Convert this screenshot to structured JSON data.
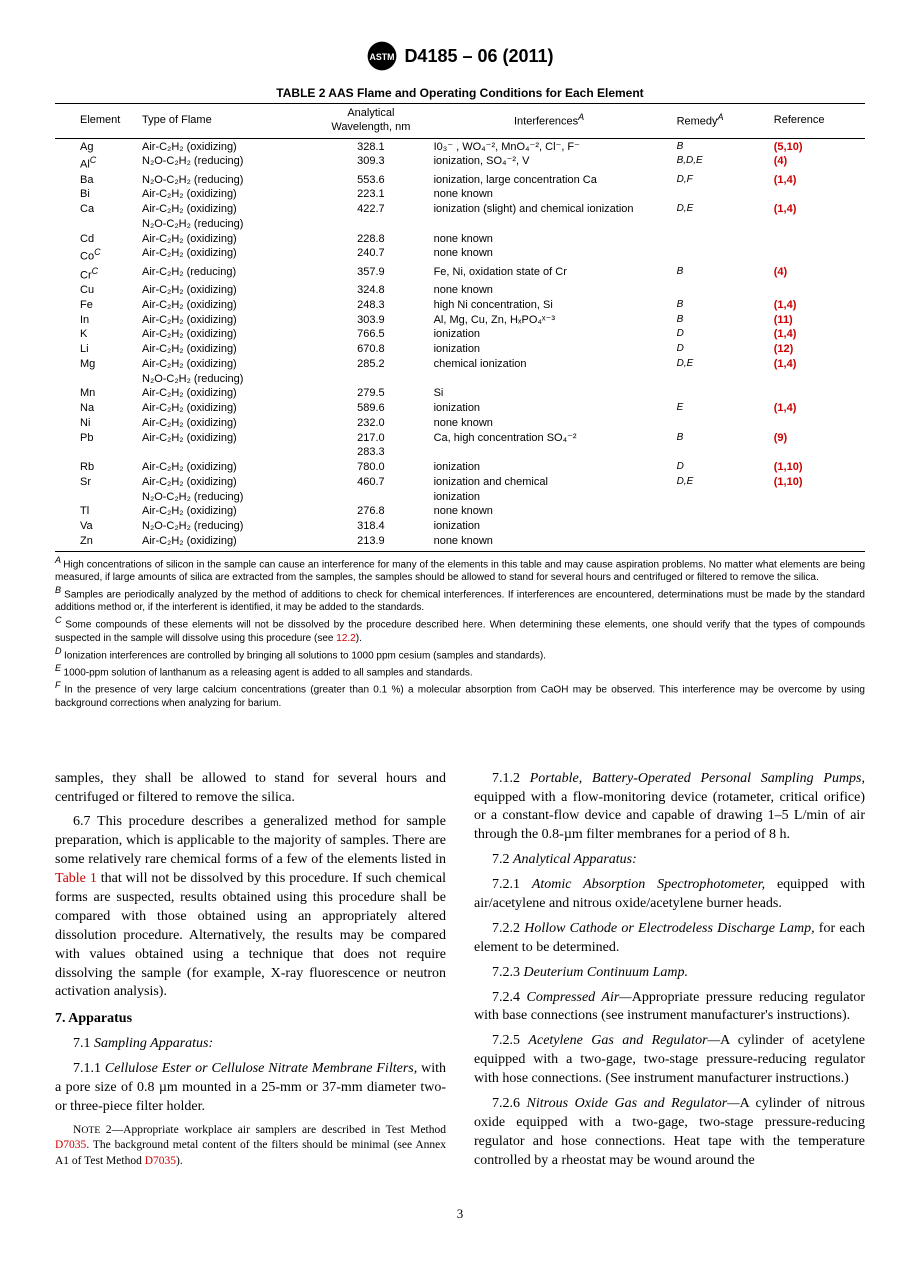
{
  "header": {
    "designation": "D4185 – 06 (2011)"
  },
  "table": {
    "title": "TABLE 2 AAS Flame and Operating Conditions for Each Element",
    "columns": [
      "Element",
      "Type of Flame",
      "Analytical\nWavelength, nm",
      "Interferences",
      "Remedy",
      "Reference"
    ],
    "col_sup": {
      "3": "A",
      "4": "A"
    },
    "rows": [
      {
        "el": "Ag",
        "flame": "Air-C₂H₂  (oxidizing)",
        "wave": "328.1",
        "intf": "I0₃⁻ , WO₄⁻², MnO₄⁻², Cl⁻, F⁻",
        "rem": "B",
        "ref": "(5,10)"
      },
      {
        "el": "Al",
        "elSup": "C",
        "flame": "N₂O-C₂H₂  (reducing)",
        "wave": "309.3",
        "intf": "ionization, SO₄⁻², V",
        "rem": "B,D,E",
        "ref": "(4)"
      },
      {
        "el": "Ba",
        "flame": "N₂O-C₂H₂  (reducing)",
        "wave": "553.6",
        "intf": "ionization, large concentration Ca",
        "rem": "D,F",
        "ref": "(1,4)"
      },
      {
        "el": "Bi",
        "flame": "Air-C₂H₂  (oxidizing)",
        "wave": "223.1",
        "intf": "none known",
        "rem": "",
        "ref": ""
      },
      {
        "el": "Ca",
        "flame": "Air-C₂H₂  (oxidizing)",
        "wave": "422.7",
        "intf": "ionization (slight) and chemical ionization",
        "rem": "D,E",
        "ref": "(1,4)"
      },
      {
        "el": "",
        "flame": "N₂O-C₂H₂  (reducing)",
        "wave": "",
        "intf": "",
        "rem": "",
        "ref": ""
      },
      {
        "el": "Cd",
        "flame": "Air-C₂H₂  (oxidizing)",
        "wave": "228.8",
        "intf": "none known",
        "rem": "",
        "ref": ""
      },
      {
        "el": "Co",
        "elSup": "C",
        "flame": "Air-C₂H₂  (oxidizing)",
        "wave": "240.7",
        "intf": "none known",
        "rem": "",
        "ref": ""
      },
      {
        "el": "Cr",
        "elSup": "C",
        "flame": "Air-C₂H₂  (reducing)",
        "wave": "357.9",
        "intf": "Fe, Ni, oxidation state of Cr",
        "rem": "B",
        "ref": "(4)"
      },
      {
        "el": "Cu",
        "flame": "Air-C₂H₂  (oxidizing)",
        "wave": "324.8",
        "intf": "none known",
        "rem": "",
        "ref": ""
      },
      {
        "el": "Fe",
        "flame": "Air-C₂H₂  (oxidizing)",
        "wave": "248.3",
        "intf": "high Ni concentration, Si",
        "rem": "B",
        "ref": "(1,4)"
      },
      {
        "el": "In",
        "flame": "Air-C₂H₂  (oxidizing)",
        "wave": "303.9",
        "intf": "Al, Mg, Cu, Zn, HₓPO₄ˣ⁻³",
        "rem": "B",
        "ref": "(11)"
      },
      {
        "el": "K",
        "flame": "Air-C₂H₂  (oxidizing)",
        "wave": "766.5",
        "intf": "ionization",
        "rem": "D",
        "ref": "(1,4)"
      },
      {
        "el": "Li",
        "flame": "Air-C₂H₂  (oxidizing)",
        "wave": "670.8",
        "intf": "ionization",
        "rem": "D",
        "ref": "(12)"
      },
      {
        "el": "Mg",
        "flame": "Air-C₂H₂  (oxidizing)",
        "wave": "285.2",
        "intf": "chemical ionization",
        "rem": "D,E",
        "ref": "(1,4)"
      },
      {
        "el": "",
        "flame": "N₂O-C₂H₂  (reducing)",
        "wave": "",
        "intf": "",
        "rem": "",
        "ref": ""
      },
      {
        "el": "Mn",
        "flame": "Air-C₂H₂  (oxidizing)",
        "wave": "279.5",
        "intf": "Si",
        "rem": "",
        "ref": ""
      },
      {
        "el": "Na",
        "flame": "Air-C₂H₂  (oxidizing)",
        "wave": "589.6",
        "intf": "ionization",
        "rem": "E",
        "ref": "(1,4)"
      },
      {
        "el": "Ni",
        "flame": "Air-C₂H₂  (oxidizing)",
        "wave": "232.0",
        "intf": "none known",
        "rem": "",
        "ref": ""
      },
      {
        "el": "Pb",
        "flame": "Air-C₂H₂  (oxidizing)",
        "wave": "217.0",
        "intf": "Ca, high concentration SO₄⁻²",
        "rem": "B",
        "ref": "(9)"
      },
      {
        "el": "",
        "flame": "",
        "wave": "283.3",
        "intf": "",
        "rem": "",
        "ref": ""
      },
      {
        "el": "Rb",
        "flame": "Air-C₂H₂  (oxidizing)",
        "wave": "780.0",
        "intf": "ionization",
        "rem": "D",
        "ref": "(1,10)"
      },
      {
        "el": "Sr",
        "flame": "Air-C₂H₂  (oxidizing)",
        "wave": "460.7",
        "intf": "ionization and chemical",
        "rem": "D,E",
        "ref": "(1,10)"
      },
      {
        "el": "",
        "flame": "N₂O-C₂H₂  (reducing)",
        "wave": "",
        "intf": "ionization",
        "rem": "",
        "ref": ""
      },
      {
        "el": "Tl",
        "flame": "Air-C₂H₂  (oxidizing)",
        "wave": "276.8",
        "intf": "none known",
        "rem": "",
        "ref": ""
      },
      {
        "el": "Va",
        "flame": "N₂O-C₂H₂  (reducing)",
        "wave": "318.4",
        "intf": "ionization",
        "rem": "",
        "ref": ""
      },
      {
        "el": "Zn",
        "flame": "Air-C₂H₂  (oxidizing)",
        "wave": "213.9",
        "intf": "none known",
        "rem": "",
        "ref": ""
      }
    ]
  },
  "footnotes": {
    "A": "High concentrations of silicon in the sample can cause an interference for many of the elements in this table and may cause aspiration problems. No matter what elements are being measured, if large amounts of silica are extracted from the samples, the samples should be allowed to stand for several hours and centrifuged or filtered to remove the silica.",
    "B": "Samples are periodically analyzed by the method of additions to check for chemical interferences. If interferences are encountered, determinations must be made by the standard additions method or, if the interferent is identified, it may be added to the standards.",
    "C_pre": "Some compounds of these elements will not be dissolved by the procedure described here. When determining these elements, one should verify that the types of compounds suspected in the sample will dissolve using this procedure (see ",
    "C_link": "12.2",
    "C_post": ").",
    "D": "Ionization interferences are controlled by bringing all solutions to 1000 ppm cesium (samples and standards).",
    "E": "1000-ppm solution of lanthanum as a releasing agent is added to all samples and standards.",
    "F": "In the presence of very large calcium concentrations (greater than 0.1 %) a molecular absorption from CaOH may be observed. This interference may be overcome by using background corrections when analyzing for barium."
  },
  "body": {
    "p_cont": "samples, they shall be allowed to stand for several hours and centrifuged or filtered to remove the silica.",
    "p67_pre": "6.7 This procedure describes a generalized method for sample preparation, which is applicable to the majority of samples. There are some relatively rare chemical forms of a few of the elements listed in ",
    "p67_link": "Table 1",
    "p67_post": " that will not be dissolved by this procedure. If such chemical forms are suspected, results obtained using this procedure shall be compared with those obtained using an appropriately altered dissolution procedure. Alternatively, the results may be compared with values obtained using a technique that does not require dissolving the sample (for example, X-ray fluorescence or neutron activation analysis).",
    "s7": "7. Apparatus",
    "s71": "7.1 ",
    "s71_it": "Sampling Apparatus:",
    "s711_n": "7.1.1 ",
    "s711_it": "Cellulose Ester or Cellulose Nitrate Membrane Filters,",
    "s711_t": " with a pore size of 0.8 µm mounted in a 25-mm or 37-mm diameter two- or three-piece filter holder.",
    "note2_pre": "NOTE 2—Appropriate workplace air samplers are described in Test Method ",
    "note2_ref1": "D7035",
    "note2_mid": ". The background metal content of the filters should be minimal (see Annex A1 of Test Method ",
    "note2_ref2": "D7035",
    "note2_post": ").",
    "s712_n": "7.1.2 ",
    "s712_it": "Portable, Battery-Operated Personal Sampling Pumps,",
    "s712_t": " equipped with a flow-monitoring device (rotameter, critical orifice) or a constant-flow device and capable of drawing 1–5 L/min of air through the 0.8-µm filter membranes for a period of 8 h.",
    "s72": "7.2 ",
    "s72_it": "Analytical Apparatus:",
    "s721_n": "7.2.1 ",
    "s721_it": "Atomic Absorption Spectrophotometer,",
    "s721_t": " equipped with air/acetylene and nitrous oxide/acetylene burner heads.",
    "s722_n": "7.2.2 ",
    "s722_it": "Hollow Cathode or Electrodeless Discharge Lamp,",
    "s722_t": " for each element to be determined.",
    "s723_n": "7.2.3 ",
    "s723_it": "Deuterium Continuum Lamp.",
    "s724_n": "7.2.4 ",
    "s724_it": "Compressed Air—",
    "s724_t": "Appropriate pressure reducing regulator with base connections (see instrument manufacturer's instructions).",
    "s725_n": "7.2.5 ",
    "s725_it": "Acetylene Gas and Regulator—",
    "s725_t": "A cylinder of acetylene equipped with a two-gage, two-stage pressure-reducing regulator with hose connections. (See instrument manufacturer instructions.)",
    "s726_n": "7.2.6 ",
    "s726_it": "Nitrous Oxide Gas and Regulator—",
    "s726_t": "A cylinder of nitrous oxide equipped with a two-gage, two-stage pressure-reducing regulator and hose connections. Heat tape with the temperature controlled by a rheostat may be wound around the"
  },
  "page_number": "3"
}
